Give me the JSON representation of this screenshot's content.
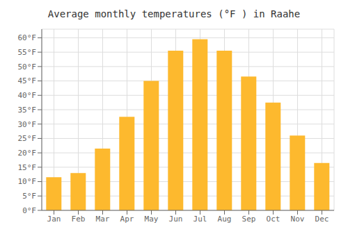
{
  "chart_data": {
    "type": "bar",
    "title": "Average monthly temperatures (°F ) in Raahe",
    "categories": [
      "Jan",
      "Feb",
      "Mar",
      "Apr",
      "May",
      "Jun",
      "Jul",
      "Aug",
      "Sep",
      "Oct",
      "Nov",
      "Dec"
    ],
    "values": [
      11.5,
      13.0,
      21.5,
      32.5,
      45.0,
      55.5,
      59.5,
      55.5,
      46.5,
      37.5,
      26.0,
      16.5
    ],
    "color": "#FDB92E",
    "ylim": [
      0,
      63
    ],
    "yticks": [
      {
        "value": 0,
        "label": "0°F"
      },
      {
        "value": 5,
        "label": "5°F"
      },
      {
        "value": 10,
        "label": "10°F"
      },
      {
        "value": 15,
        "label": "15°F"
      },
      {
        "value": 20,
        "label": "20°F"
      },
      {
        "value": 25,
        "label": "25°F"
      },
      {
        "value": 30,
        "label": "30°F"
      },
      {
        "value": 35,
        "label": "35°F"
      },
      {
        "value": 40,
        "label": "40°F"
      },
      {
        "value": 45,
        "label": "45°F"
      },
      {
        "value": 50,
        "label": "50°F"
      },
      {
        "value": 55,
        "label": "55°F"
      },
      {
        "value": 60,
        "label": "60°F"
      }
    ],
    "grid": true
  }
}
